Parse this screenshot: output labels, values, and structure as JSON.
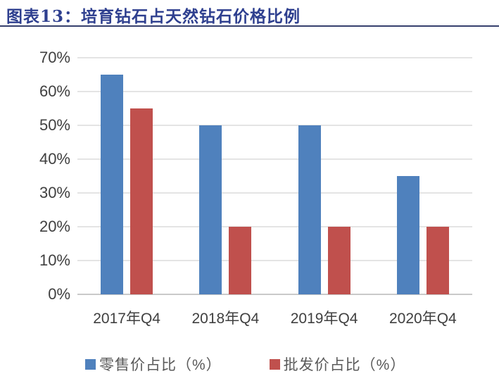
{
  "title": "图表13：培育钻石占天然钻石价格比例",
  "colors": {
    "title_text": "#2E3F8F",
    "title_rule": "#363F6D",
    "series_blue": "#4F81BD",
    "series_red": "#C0504D",
    "gridline": "#E4E4E4",
    "axis_line": "#C9C9C9",
    "tick_text": "#404040",
    "legend_text": "#595959"
  },
  "chart_data": {
    "type": "bar",
    "title": "图表13：培育钻石占天然钻石价格比例",
    "categories": [
      "2017年Q4",
      "2018年Q4",
      "2019年Q4",
      "2020年Q4"
    ],
    "series": [
      {
        "name": "零售价占比（%）",
        "color": "#4F81BD",
        "values": [
          65,
          50,
          50,
          35
        ]
      },
      {
        "name": "批发价占比（%）",
        "color": "#C0504D",
        "values": [
          55,
          20,
          20,
          20
        ]
      }
    ],
    "xlabel": "",
    "ylabel": "",
    "ylim": [
      0,
      70
    ],
    "ytick_step": 10,
    "yticks": [
      "0%",
      "10%",
      "20%",
      "30%",
      "40%",
      "50%",
      "60%",
      "70%"
    ],
    "grid": true,
    "legend_position": "bottom"
  }
}
